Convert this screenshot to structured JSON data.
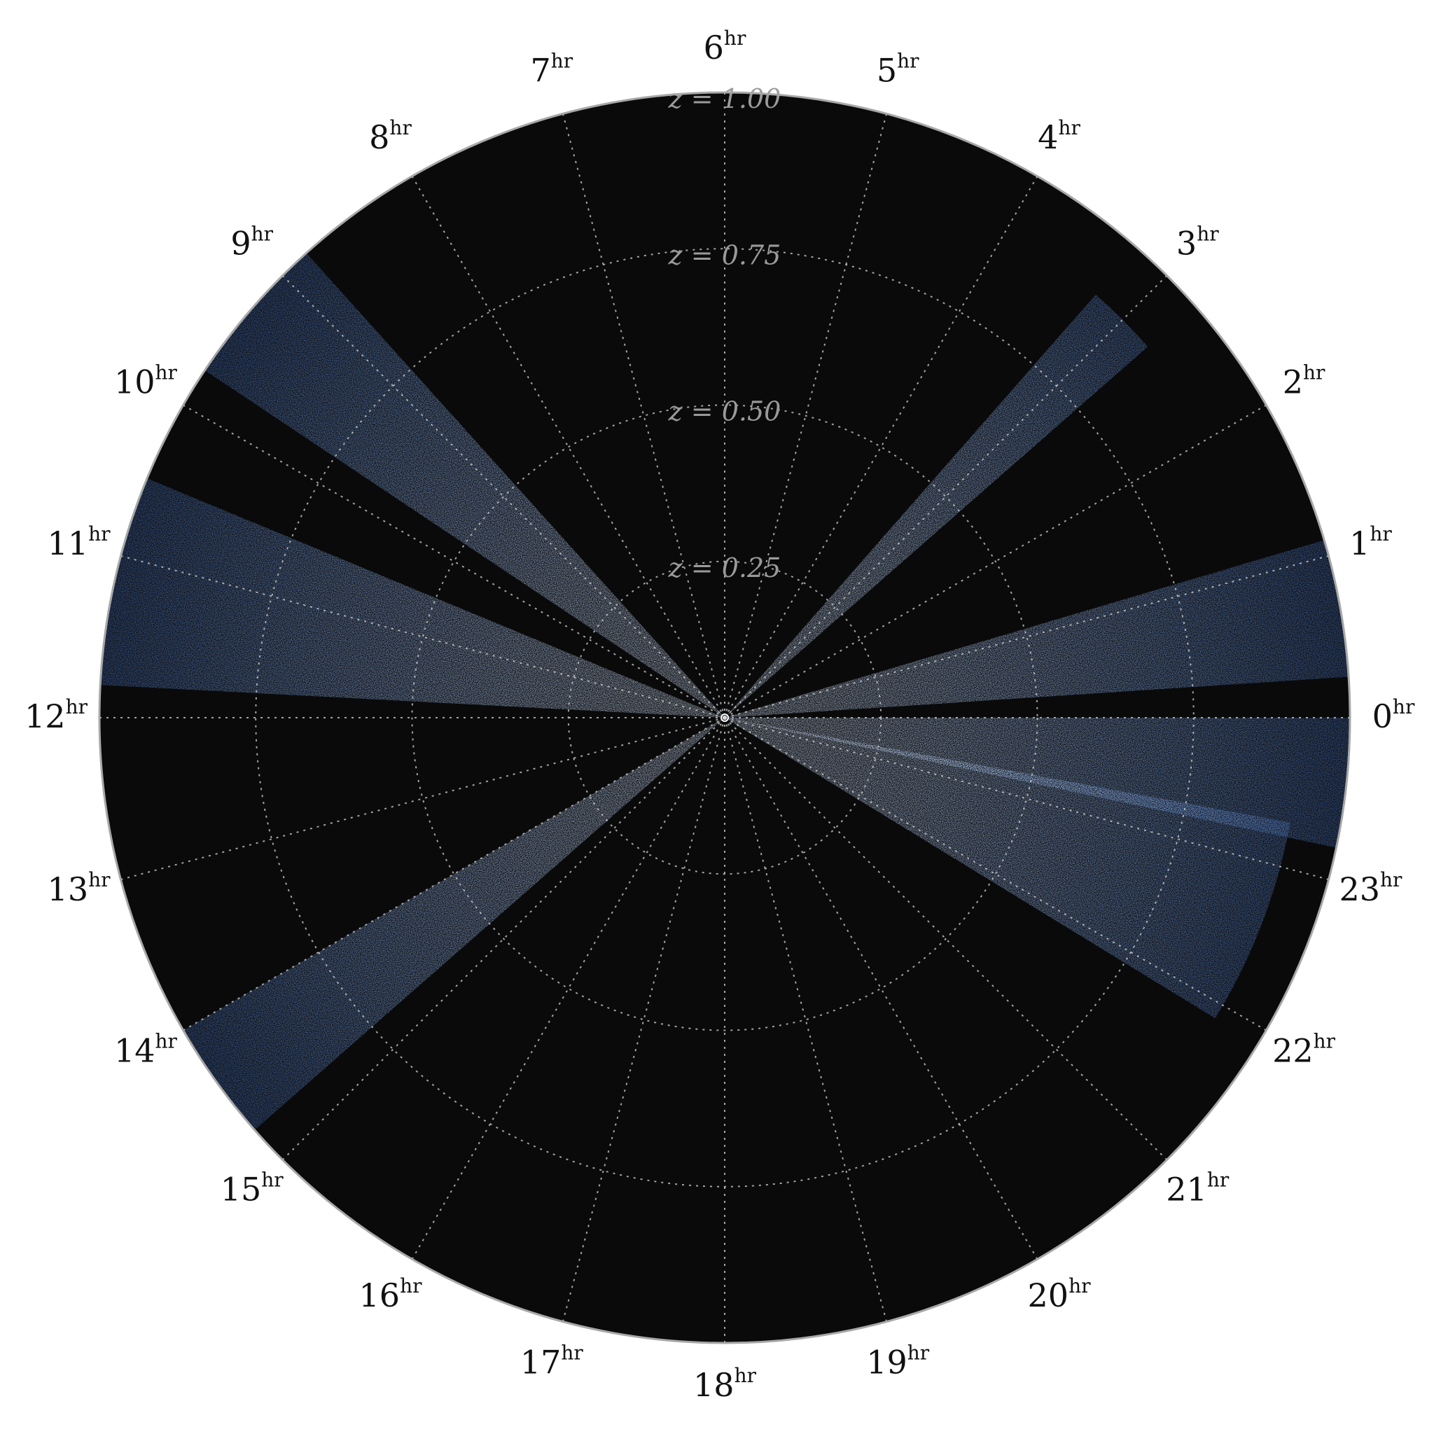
{
  "chart_data": {
    "type": "scatter",
    "projection": "polar",
    "title": "",
    "angular_axis": {
      "unit_label": "hr",
      "ticks": [
        "0",
        "1",
        "2",
        "3",
        "4",
        "5",
        "6",
        "7",
        "8",
        "9",
        "10",
        "11",
        "12",
        "13",
        "14",
        "15",
        "16",
        "17",
        "18",
        "19",
        "20",
        "21",
        "22",
        "23"
      ],
      "range_hours": [
        0,
        24
      ],
      "zero_direction": "right",
      "direction": "counterclockwise"
    },
    "radial_axis": {
      "variable": "z",
      "range": [
        0,
        1.0
      ],
      "ticks": [
        0.25,
        0.5,
        0.75,
        1.0
      ],
      "tick_labels": [
        "z = 0.25",
        "z = 0.50",
        "z = 0.75",
        "z = 1.00"
      ]
    },
    "grid": true,
    "background_color": "#0a0a0a",
    "point_color": "#7fb2ff",
    "series": [
      {
        "ra_hours": [
          21.9,
          23.3
        ],
        "z_range": [
          0,
          0.92
        ]
      },
      {
        "ra_hours": [
          23.2,
          0.0
        ],
        "z_range": [
          0,
          1.0
        ]
      },
      {
        "ra_hours": [
          0.25,
          1.1
        ],
        "z_range": [
          0,
          1.0
        ]
      },
      {
        "ra_hours": [
          2.75,
          3.25
        ],
        "z_range": [
          0,
          0.9
        ]
      },
      {
        "ra_hours": [
          8.8,
          9.75
        ],
        "z_range": [
          0,
          1.0
        ]
      },
      {
        "ra_hours": [
          10.5,
          11.8
        ],
        "z_range": [
          0,
          1.0
        ]
      },
      {
        "ra_hours": [
          14.0,
          14.75
        ],
        "z_range": [
          0,
          1.0
        ]
      }
    ]
  }
}
